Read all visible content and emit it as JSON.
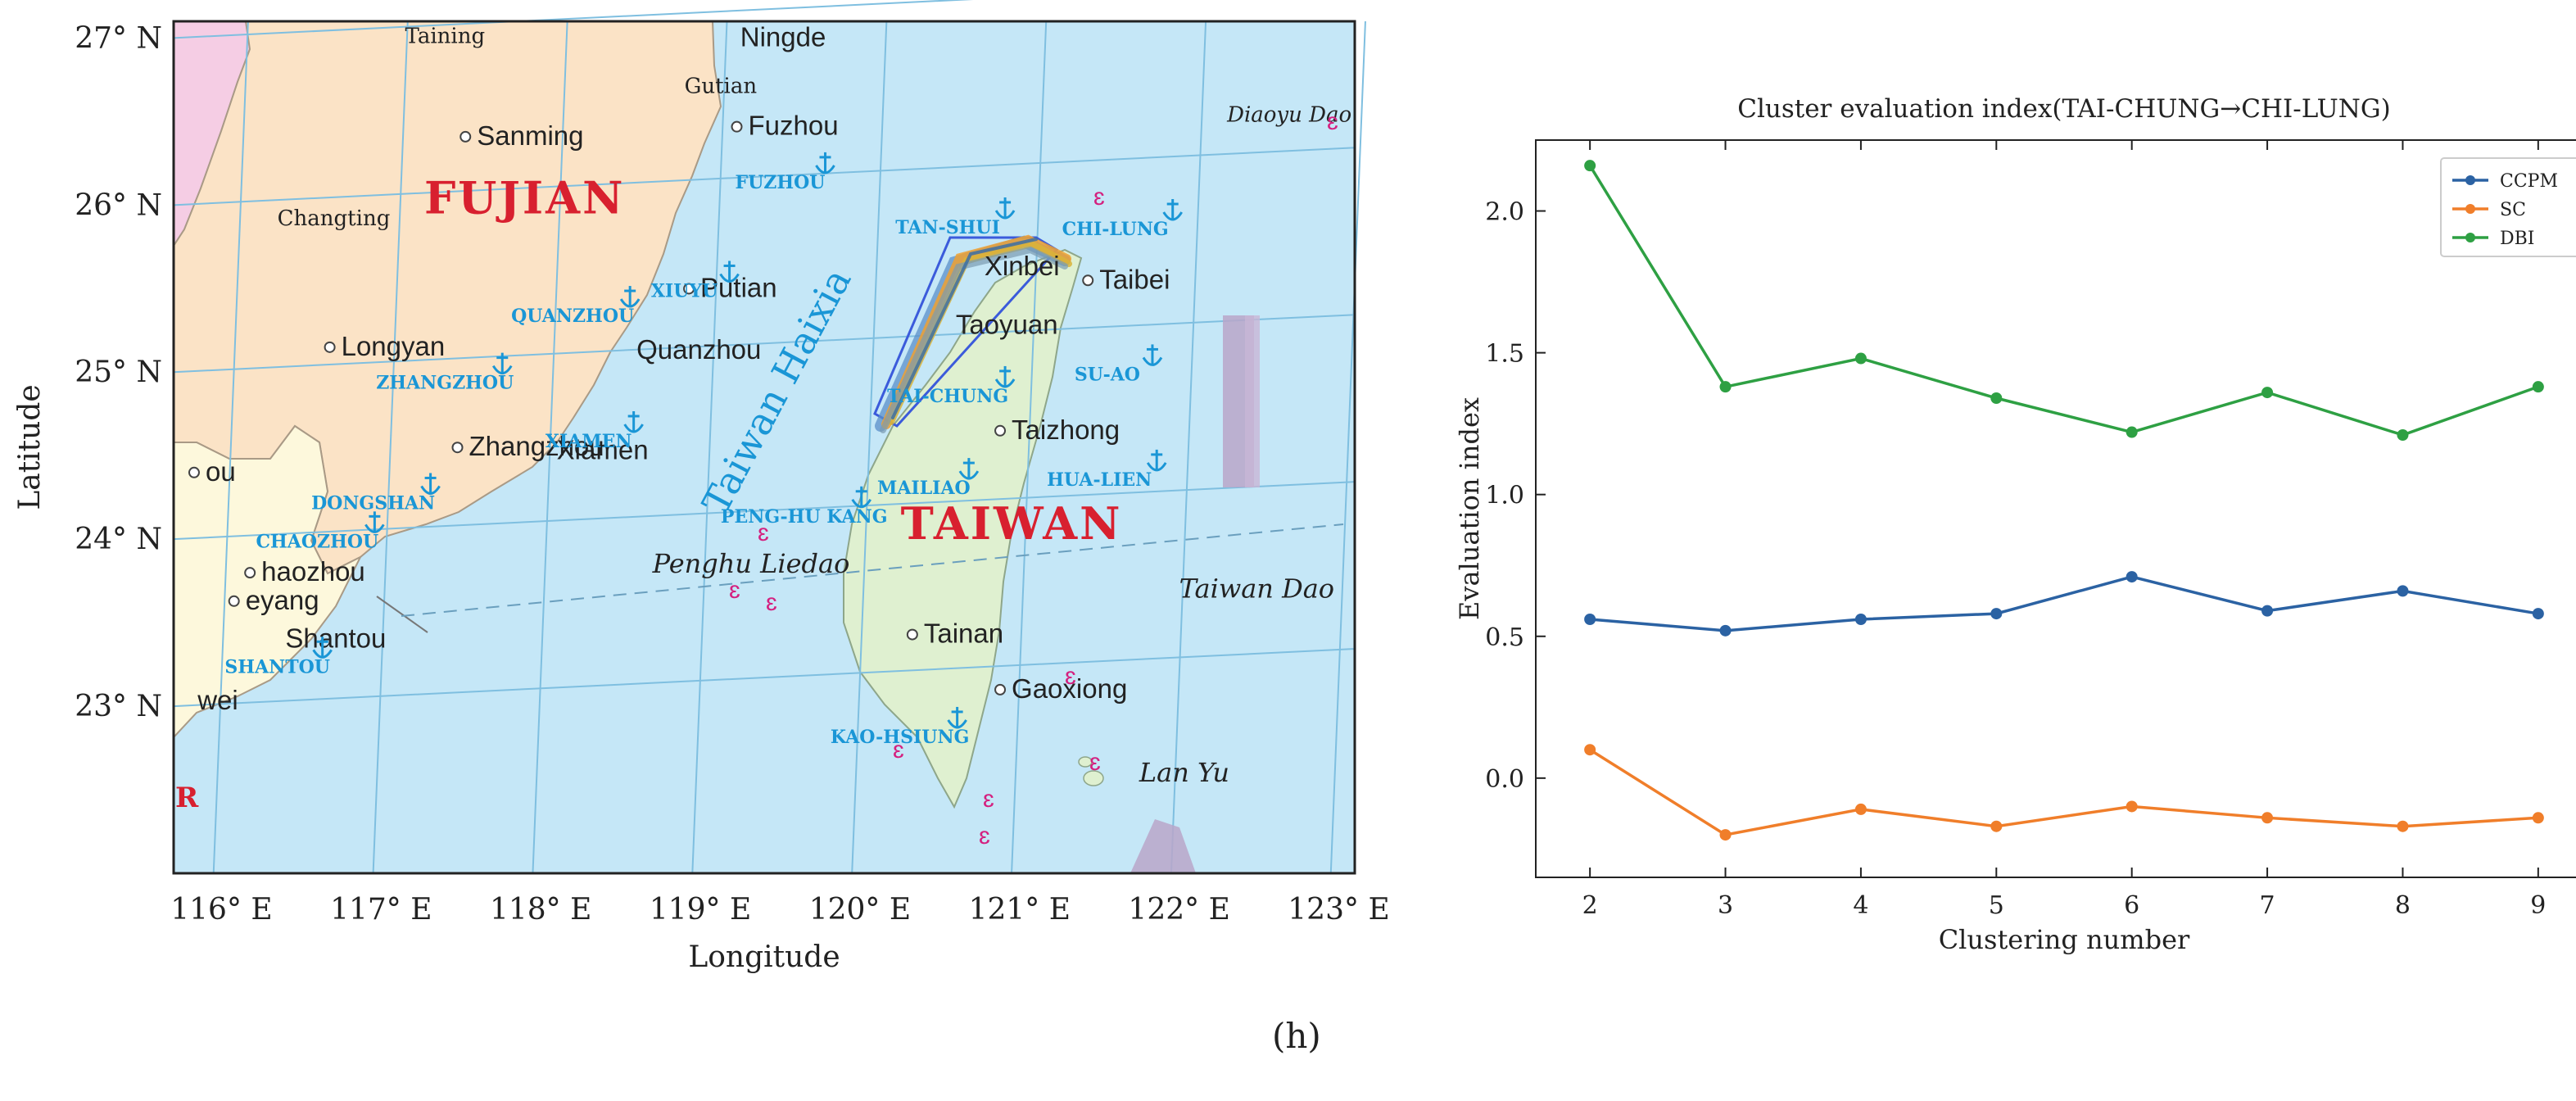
{
  "panel_label": "(h)",
  "map": {
    "xlabel": "Longitude",
    "ylabel": "Latitude",
    "lon_range": [
      115.7,
      123.1
    ],
    "lat_range": [
      22.0,
      27.1
    ],
    "lon_ticks": [
      {
        "value": 116,
        "label": "116° E"
      },
      {
        "value": 117,
        "label": "117° E"
      },
      {
        "value": 118,
        "label": "118° E"
      },
      {
        "value": 119,
        "label": "119° E"
      },
      {
        "value": 120,
        "label": "120° E"
      },
      {
        "value": 121,
        "label": "121° E"
      },
      {
        "value": 122,
        "label": "122° E"
      },
      {
        "value": 123,
        "label": "123° E"
      }
    ],
    "lat_ticks": [
      {
        "value": 23,
        "label": "23° N"
      },
      {
        "value": 24,
        "label": "24° N"
      },
      {
        "value": 25,
        "label": "25° N"
      },
      {
        "value": 26,
        "label": "26° N"
      },
      {
        "value": 27,
        "label": "27° N"
      }
    ],
    "colors": {
      "sea": "#c5e7f7",
      "fujian": "#fbe3c6",
      "guangdong": "#fdf8dc",
      "taiwan": "#dff0d0",
      "west": "#f5cde4",
      "port": "#1a96d6",
      "province": "#d8202f",
      "island": "#d4207f"
    },
    "regions": [
      {
        "text": "FUJIAN",
        "lon": 117.9,
        "lat": 25.95
      },
      {
        "text": "TAIWAN",
        "lon": 120.95,
        "lat": 24.0
      }
    ],
    "cities": [
      {
        "text": "Taining",
        "lon": 117.15,
        "lat": 26.97,
        "dot": false
      },
      {
        "text": "Ningde",
        "lon": 119.25,
        "lat": 26.95,
        "dot": false
      },
      {
        "text": "Gutian",
        "lon": 118.9,
        "lat": 26.67,
        "dot": false
      },
      {
        "text": "Fuzhou",
        "lon": 119.3,
        "lat": 26.42,
        "dot": true
      },
      {
        "text": "Sanming",
        "lon": 117.6,
        "lat": 26.36,
        "dot": true
      },
      {
        "text": "Changting",
        "lon": 116.35,
        "lat": 25.88,
        "dot": false
      },
      {
        "text": "Putian",
        "lon": 119.0,
        "lat": 25.45,
        "dot": true
      },
      {
        "text": "Longyan",
        "lon": 116.75,
        "lat": 25.1,
        "dot": true
      },
      {
        "text": "Quanzhou",
        "lon": 118.6,
        "lat": 25.08,
        "dot": false
      },
      {
        "text": "Xiamen",
        "lon": 118.1,
        "lat": 24.48,
        "dot": false
      },
      {
        "text": "Zhangzhou",
        "lon": 117.55,
        "lat": 24.5,
        "dot": true
      },
      {
        "text": "ou",
        "lon": 115.9,
        "lat": 24.35,
        "dot": true
      },
      {
        "text": "haozhou",
        "lon": 116.25,
        "lat": 23.75,
        "dot": true
      },
      {
        "text": "eyang",
        "lon": 116.15,
        "lat": 23.58,
        "dot": true
      },
      {
        "text": "Shantou",
        "lon": 116.4,
        "lat": 23.35,
        "dot": false
      },
      {
        "text": "wei",
        "lon": 115.85,
        "lat": 22.98,
        "dot": false
      },
      {
        "text": "Xinbei",
        "lon": 120.78,
        "lat": 25.58,
        "dot": false
      },
      {
        "text": "Taibei",
        "lon": 121.5,
        "lat": 25.5,
        "dot": true
      },
      {
        "text": "Taoyuan",
        "lon": 120.6,
        "lat": 25.23,
        "dot": false
      },
      {
        "text": "Taizhong",
        "lon": 120.95,
        "lat": 24.6,
        "dot": true
      },
      {
        "text": "Tainan",
        "lon": 120.4,
        "lat": 23.38,
        "dot": true
      },
      {
        "text": "Gaoxiong",
        "lon": 120.95,
        "lat": 23.05,
        "dot": true
      }
    ],
    "ports": [
      {
        "text": "FUZHOU",
        "lon": 119.5,
        "lat": 26.1
      },
      {
        "text": "XIUYU",
        "lon": 118.9,
        "lat": 25.45
      },
      {
        "text": "QUANZHOU",
        "lon": 118.2,
        "lat": 25.3
      },
      {
        "text": "ZHANGZHOU",
        "lon": 117.4,
        "lat": 24.9
      },
      {
        "text": "XIAMEN",
        "lon": 118.3,
        "lat": 24.55
      },
      {
        "text": "DONGSHAN",
        "lon": 116.95,
        "lat": 24.18
      },
      {
        "text": "CHAOZHOU",
        "lon": 116.6,
        "lat": 23.95
      },
      {
        "text": "SHANTOU",
        "lon": 116.35,
        "lat": 23.2
      },
      {
        "text": "TAN-SHUI",
        "lon": 120.55,
        "lat": 25.83
      },
      {
        "text": "CHI-LUNG",
        "lon": 121.6,
        "lat": 25.82
      },
      {
        "text": "TAI-CHUNG",
        "lon": 120.55,
        "lat": 24.82
      },
      {
        "text": "SU-AO",
        "lon": 121.55,
        "lat": 24.95
      },
      {
        "text": "MAILIAO",
        "lon": 120.4,
        "lat": 24.27
      },
      {
        "text": "HUA-LIEN",
        "lon": 121.5,
        "lat": 24.32
      },
      {
        "text": "PENG-HU KANG",
        "lon": 119.65,
        "lat": 24.1
      },
      {
        "text": "KAO-HSIUNG",
        "lon": 120.25,
        "lat": 22.78
      }
    ],
    "sea_labels": [
      {
        "text": "Taiwan Haixia",
        "lon": 119.55,
        "lat": 24.85
      },
      {
        "text": "Penghu Liedao",
        "lon": 118.7,
        "lat": 23.8
      },
      {
        "text": "Taiwan Dao",
        "lon": 122.0,
        "lat": 23.65
      },
      {
        "text": "Diaoyu Dao",
        "lon": 122.3,
        "lat": 26.5
      },
      {
        "text": "Lan Yu",
        "lon": 121.75,
        "lat": 22.55
      }
    ],
    "fragment_label": "R"
  },
  "chart_data": {
    "type": "line",
    "title": "Cluster evaluation index(TAI-CHUNG→CHI-LUNG)",
    "xlabel": "Clustering number",
    "ylabel": "Evaluation index",
    "x": [
      2,
      3,
      4,
      5,
      6,
      7,
      8,
      9
    ],
    "xlim": [
      1.6,
      9.4
    ],
    "ylim": [
      -0.35,
      2.25
    ],
    "yticks": [
      0.0,
      0.5,
      1.0,
      1.5,
      2.0
    ],
    "ytick_labels": [
      "0.0",
      "0.5",
      "1.0",
      "1.5",
      "2.0"
    ],
    "grid": false,
    "legend_position": "top-right",
    "series": [
      {
        "name": "CCPM",
        "color": "#2b62a3",
        "values": [
          0.56,
          0.52,
          0.56,
          0.58,
          0.71,
          0.59,
          0.66,
          0.58
        ]
      },
      {
        "name": "SC",
        "color": "#f07e2a",
        "values": [
          0.1,
          -0.2,
          -0.11,
          -0.17,
          -0.1,
          -0.14,
          -0.17,
          -0.14
        ]
      },
      {
        "name": "DBI",
        "color": "#2ea043",
        "values": [
          2.16,
          1.38,
          1.48,
          1.34,
          1.22,
          1.36,
          1.21,
          1.38
        ]
      }
    ]
  }
}
